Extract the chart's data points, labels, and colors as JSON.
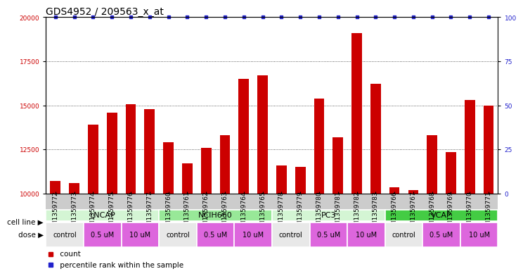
{
  "title": "GDS4952 / 209563_x_at",
  "samples": [
    "GSM1359772",
    "GSM1359773",
    "GSM1359774",
    "GSM1359775",
    "GSM1359776",
    "GSM1359777",
    "GSM1359760",
    "GSM1359761",
    "GSM1359762",
    "GSM1359763",
    "GSM1359764",
    "GSM1359765",
    "GSM1359778",
    "GSM1359779",
    "GSM1359780",
    "GSM1359781",
    "GSM1359782",
    "GSM1359783",
    "GSM1359766",
    "GSM1359767",
    "GSM1359768",
    "GSM1359769",
    "GSM1359770",
    "GSM1359771"
  ],
  "counts": [
    10700,
    10600,
    13900,
    14600,
    15050,
    14800,
    12900,
    11700,
    12600,
    13300,
    16500,
    16700,
    11600,
    11500,
    15400,
    13200,
    19100,
    16200,
    10350,
    10200,
    13300,
    12350,
    15300,
    15000
  ],
  "cell_lines": [
    {
      "label": "LNCAP",
      "start": 0,
      "end": 6,
      "color": "#d4f5d4"
    },
    {
      "label": "NCIH660",
      "start": 6,
      "end": 12,
      "color": "#98e898"
    },
    {
      "label": "PC3",
      "start": 12,
      "end": 18,
      "color": "#d4f5d4"
    },
    {
      "label": "VCAP",
      "start": 18,
      "end": 24,
      "color": "#44cc44"
    }
  ],
  "dose_groups": [
    {
      "label": "control",
      "start": 0,
      "end": 2,
      "color": "#e8e8e8"
    },
    {
      "label": "0.5 uM",
      "start": 2,
      "end": 4,
      "color": "#dd66dd"
    },
    {
      "label": "10 uM",
      "start": 4,
      "end": 6,
      "color": "#dd66dd"
    },
    {
      "label": "control",
      "start": 6,
      "end": 8,
      "color": "#e8e8e8"
    },
    {
      "label": "0.5 uM",
      "start": 8,
      "end": 10,
      "color": "#dd66dd"
    },
    {
      "label": "10 uM",
      "start": 10,
      "end": 12,
      "color": "#dd66dd"
    },
    {
      "label": "control",
      "start": 12,
      "end": 14,
      "color": "#e8e8e8"
    },
    {
      "label": "0.5 uM",
      "start": 14,
      "end": 16,
      "color": "#dd66dd"
    },
    {
      "label": "10 uM",
      "start": 16,
      "end": 18,
      "color": "#dd66dd"
    },
    {
      "label": "control",
      "start": 18,
      "end": 20,
      "color": "#e8e8e8"
    },
    {
      "label": "0.5 uM",
      "start": 20,
      "end": 22,
      "color": "#dd66dd"
    },
    {
      "label": "10 uM",
      "start": 22,
      "end": 24,
      "color": "#dd66dd"
    }
  ],
  "ylim_left": [
    10000,
    20000
  ],
  "ylim_right": [
    0,
    100
  ],
  "yticks_left": [
    10000,
    12500,
    15000,
    17500,
    20000
  ],
  "yticks_right": [
    0,
    25,
    50,
    75,
    100
  ],
  "bar_color": "#cc0000",
  "dot_color": "#2222cc",
  "bg_color": "#ffffff",
  "grid_color": "#333333",
  "tick_color_left": "#cc0000",
  "tick_color_right": "#2222cc",
  "xtick_bg": "#cccccc",
  "title_fontsize": 10,
  "tick_fontsize": 6.5,
  "annot_fontsize": 8
}
